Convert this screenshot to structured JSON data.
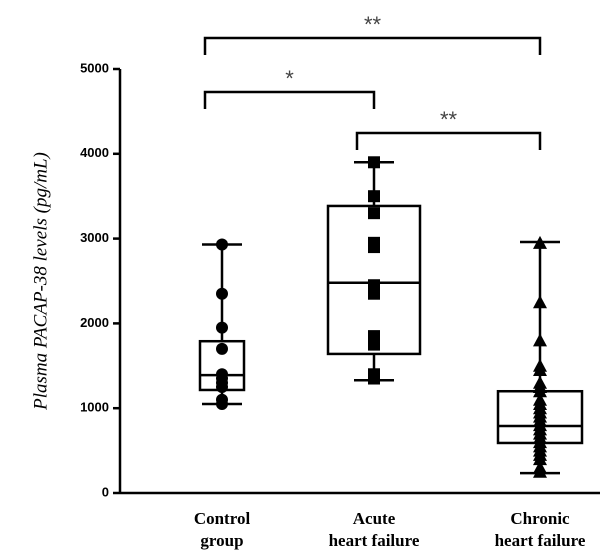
{
  "chart_data": {
    "type": "box",
    "ylabel": "Plasma PACAP-38 levels (pg/mL)",
    "categories": [
      "Control\ngroup",
      "Acute\nheart failure",
      "Chronic\nheart failure"
    ],
    "ylim": [
      0,
      5000
    ],
    "yticks": [
      0,
      1000,
      2000,
      3000,
      4000,
      5000
    ],
    "color": "#000000",
    "groups": [
      {
        "marker": "circle",
        "min": 1050,
        "q1": 1215,
        "median": 1390,
        "q3": 1790,
        "max": 2930,
        "points": [
          2930,
          2350,
          1950,
          1700,
          1400,
          1350,
          1300,
          1250,
          1100,
          1050
        ]
      },
      {
        "marker": "square",
        "min": 1330,
        "q1": 1640,
        "median": 2480,
        "q3": 3385,
        "max": 3900,
        "points": [
          3900,
          3500,
          3300,
          2950,
          2900,
          2450,
          2350,
          1850,
          1750,
          1400,
          1350
        ]
      },
      {
        "marker": "triangle",
        "min": 235,
        "q1": 590,
        "median": 790,
        "q3": 1200,
        "max": 2960,
        "points": [
          2950,
          2250,
          1800,
          1500,
          1450,
          1300,
          1250,
          1200,
          1100,
          1050,
          1000,
          950,
          900,
          850,
          800,
          750,
          700,
          650,
          600,
          550,
          500,
          450,
          400,
          300,
          250
        ]
      }
    ],
    "annotations": [
      {
        "label": "**"
      },
      {
        "label": "*"
      },
      {
        "label": "**"
      }
    ]
  }
}
